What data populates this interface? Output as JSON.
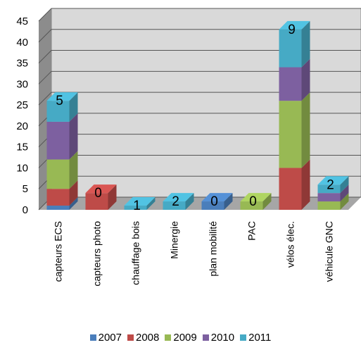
{
  "chart_data": {
    "type": "bar",
    "stacked": true,
    "three_d": true,
    "categories": [
      "capteurs ECS",
      "capteurs photo",
      "chauffage bois",
      "Minergie",
      "plan mobilité",
      "PAC",
      "vélos élec.",
      "véhicule GNC"
    ],
    "series": [
      {
        "name": "2007",
        "color": "#4A7EBB",
        "values": [
          1,
          0,
          0,
          0,
          2,
          0,
          0,
          0
        ]
      },
      {
        "name": "2008",
        "color": "#BE4B48",
        "values": [
          4,
          4,
          0,
          0,
          0,
          0,
          10,
          0
        ]
      },
      {
        "name": "2009",
        "color": "#98B954",
        "values": [
          7,
          0,
          0,
          0,
          0,
          2,
          16,
          2
        ]
      },
      {
        "name": "2010",
        "color": "#7D60A0",
        "values": [
          9,
          0,
          0,
          0,
          0,
          0,
          8,
          2
        ]
      },
      {
        "name": "2011",
        "color": "#46AAC5",
        "values": [
          5,
          0,
          1,
          2,
          0,
          0,
          9,
          2
        ]
      }
    ],
    "data_labels": [
      "5",
      "0",
      "1",
      "2",
      "0",
      "0",
      "9",
      "2"
    ],
    "ylim": [
      0,
      45
    ],
    "yticks": [
      "0",
      "5",
      "10",
      "15",
      "20",
      "25",
      "30",
      "35",
      "40",
      "45"
    ],
    "grid": true,
    "legend_position": "bottom"
  }
}
